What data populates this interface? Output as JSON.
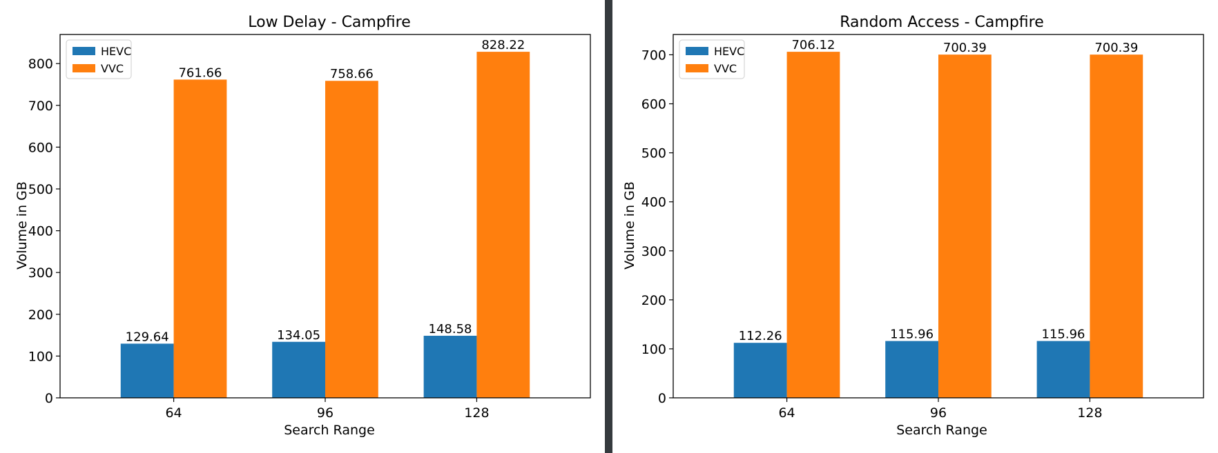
{
  "chart_data": [
    {
      "type": "bar",
      "title": "Low Delay - Campfire",
      "xlabel": "Search Range",
      "ylabel": "Volume in GB",
      "categories": [
        "64",
        "96",
        "128"
      ],
      "series": [
        {
          "name": "HEVC",
          "color": "#1f77b4",
          "values": [
            129.64,
            134.05,
            148.58
          ],
          "labels": [
            "129.64",
            "134.05",
            "148.58"
          ]
        },
        {
          "name": "VVC",
          "color": "#ff7f0e",
          "values": [
            761.66,
            758.66,
            828.22
          ],
          "labels": [
            "761.66",
            "758.66",
            "828.22"
          ]
        }
      ],
      "ylim": [
        0,
        869.63
      ],
      "yticks": [
        0,
        100,
        200,
        300,
        400,
        500,
        600,
        700,
        800
      ],
      "legend": "top-left",
      "grid": false
    },
    {
      "type": "bar",
      "title": "Random Access - Campfire",
      "xlabel": "Search Range",
      "ylabel": "Volume in GB",
      "categories": [
        "64",
        "96",
        "128"
      ],
      "series": [
        {
          "name": "HEVC",
          "color": "#1f77b4",
          "values": [
            112.26,
            115.96,
            115.96
          ],
          "labels": [
            "112.26",
            "115.96",
            "115.96"
          ]
        },
        {
          "name": "VVC",
          "color": "#ff7f0e",
          "values": [
            706.12,
            700.39,
            700.39
          ],
          "labels": [
            "706.12",
            "700.39",
            "700.39"
          ]
        }
      ],
      "ylim": [
        0,
        741.43
      ],
      "yticks": [
        0,
        100,
        200,
        300,
        400,
        500,
        600,
        700
      ],
      "legend": "top-left",
      "grid": false
    }
  ]
}
